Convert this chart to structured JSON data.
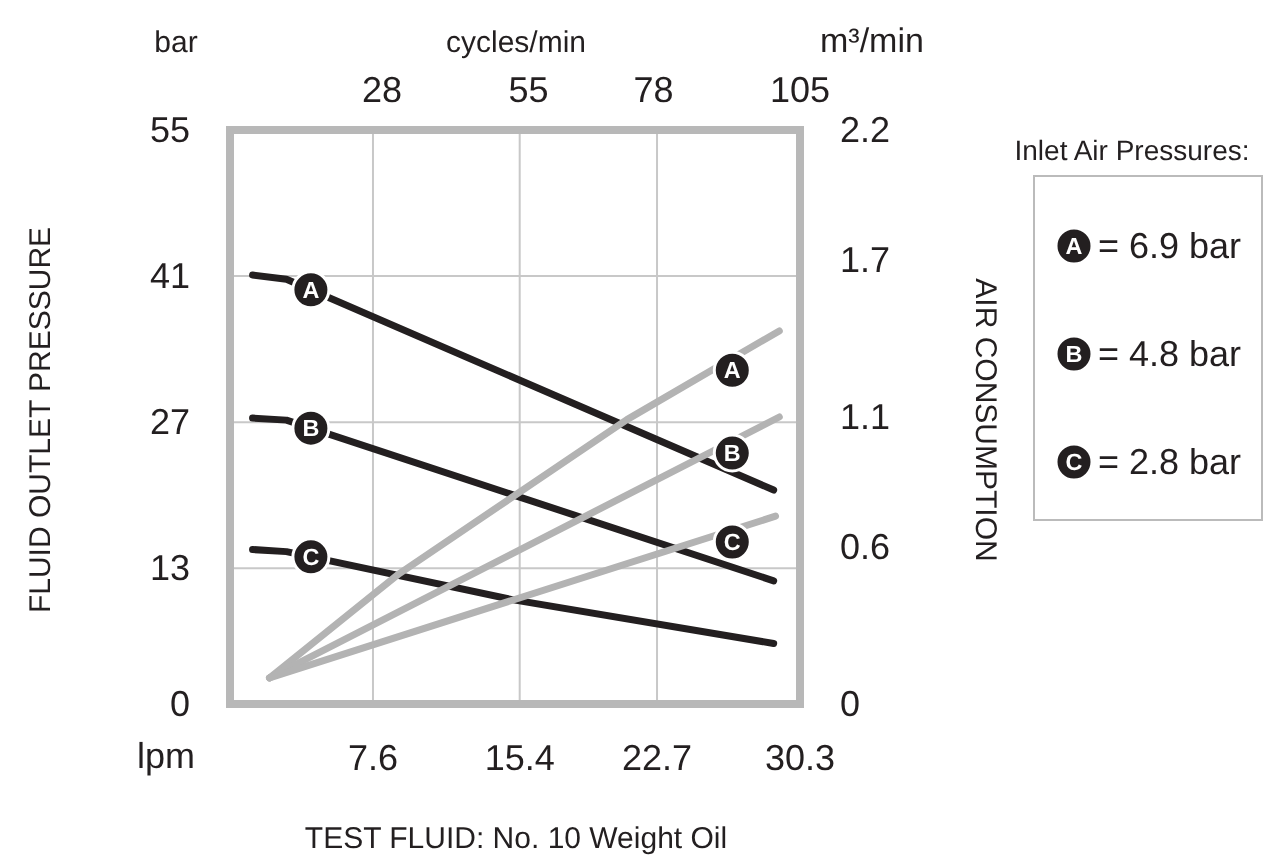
{
  "chart_data": {
    "type": "line",
    "xlabel": "lpm",
    "x2label": "cycles/min",
    "ylabel": "FLUID OUTLET PRESSURE",
    "y2label": "AIR CONSUMPTION",
    "legend_title": "Inlet Air Pressures:",
    "legend": "right",
    "grid": true,
    "line_style": "solid",
    "xlim": [
      0,
      30.3
    ],
    "xticks": [
      7.6,
      15.4,
      22.7,
      30.3
    ],
    "x2lim": [
      0,
      105
    ],
    "x2ticks": [
      28,
      55,
      78,
      105
    ],
    "ylim": [
      0,
      55
    ],
    "yticks": [
      0,
      13,
      27,
      41,
      55
    ],
    "y2lim": [
      0,
      2.2
    ],
    "y2ticks": [
      0,
      0.6,
      1.1,
      1.7,
      2.2
    ],
    "annotations": [
      "bar",
      "m³/min",
      "TEST FLUID: No. 10 Weight Oil",
      "= 6.9 bar",
      "= 4.8 bar",
      "= 2.8 bar"
    ],
    "series": [
      {
        "name": "A",
        "color": "#231f20",
        "x": [
          1.2,
          3.0,
          28.9
        ],
        "values": [
          41.1,
          40.7,
          20.5
        ]
      },
      {
        "name": "B",
        "color": "#231f20",
        "x": [
          1.2,
          3.0,
          28.9
        ],
        "values": [
          27.4,
          27.2,
          11.8
        ]
      },
      {
        "name": "C",
        "color": "#231f20",
        "x": [
          1.2,
          3.0,
          15.0,
          28.9
        ],
        "values": [
          14.8,
          14.6,
          10.0,
          5.8
        ]
      },
      {
        "name": "A",
        "color": "#b3b3b3",
        "axis": "y2",
        "x": [
          2.1,
          9.0,
          21.1,
          29.2
        ],
        "values": [
          0.1,
          0.5,
          1.09,
          1.43
        ]
      },
      {
        "name": "B",
        "color": "#b3b3b3",
        "axis": "y2",
        "x": [
          2.1,
          29.2
        ],
        "values": [
          0.1,
          1.1
        ]
      },
      {
        "name": "C",
        "color": "#b3b3b3",
        "axis": "y2",
        "x": [
          2.1,
          29.0
        ],
        "values": [
          0.1,
          0.72
        ]
      }
    ]
  }
}
